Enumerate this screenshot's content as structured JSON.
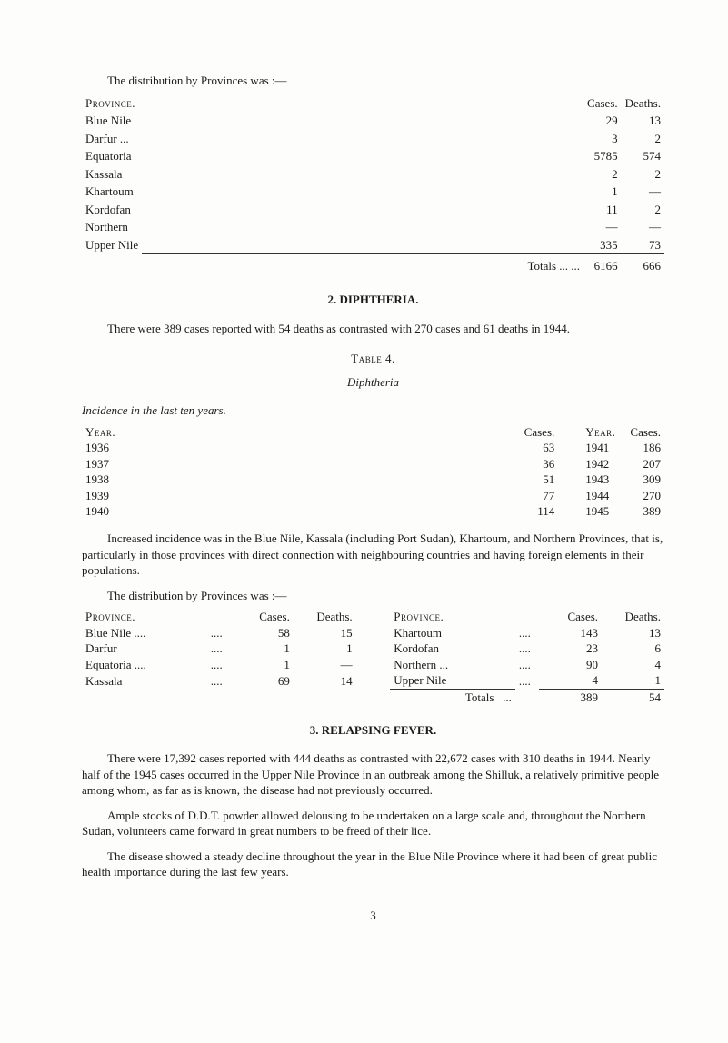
{
  "intro_line": "The distribution by Provinces was :—",
  "province_label": "Province.",
  "cases_label": "Cases.",
  "deaths_label": "Deaths.",
  "t1_rows": [
    {
      "name": "Blue Nile",
      "cases": "29",
      "deaths": "13"
    },
    {
      "name": "Darfur  ...",
      "cases": "3",
      "deaths": "2"
    },
    {
      "name": "Equatoria",
      "cases": "5785",
      "deaths": "574"
    },
    {
      "name": "Kassala",
      "cases": "2",
      "deaths": "2"
    },
    {
      "name": "Khartoum",
      "cases": "1",
      "deaths": "—"
    },
    {
      "name": "Kordofan",
      "cases": "11",
      "deaths": "2"
    },
    {
      "name": "Northern",
      "cases": "—",
      "deaths": "—"
    },
    {
      "name": "Upper Nile",
      "cases": "335",
      "deaths": "73"
    }
  ],
  "t1_totals_label": "Totals   ...   ...",
  "t1_totals_cases": "6166",
  "t1_totals_deaths": "666",
  "sec2_head": "2.   DIPHTHERIA.",
  "sec2_para": "There were 389 cases reported with 54 deaths as contrasted with 270 cases and 61 deaths in 1944.",
  "table4_head": "Table 4.",
  "table4_sub": "Diphtheria",
  "incidence_line": "Incidence in the last ten years.",
  "year_label": "Year.",
  "t4_left": [
    {
      "y": "1936",
      "c": "63"
    },
    {
      "y": "1937",
      "c": "36"
    },
    {
      "y": "1938",
      "c": "51"
    },
    {
      "y": "1939",
      "c": "77"
    },
    {
      "y": "1940",
      "c": "114"
    }
  ],
  "t4_right": [
    {
      "y": "1941",
      "c": "186"
    },
    {
      "y": "1942",
      "c": "207"
    },
    {
      "y": "1943",
      "c": "309"
    },
    {
      "y": "1944",
      "c": "270"
    },
    {
      "y": "1945",
      "c": "389"
    }
  ],
  "inc_para": "Increased incidence was in the Blue Nile, Kassala (including Port Sudan), Khartoum, and Northern Provinces, that is, particularly in those provinces with direct connection with neighbouring countries and having foreign elements in their populations.",
  "dist_line2": "The distribution by Provinces was :—",
  "t5_head_prov": "Province.",
  "t5_head_cases": "Cases.",
  "t5_head_deaths": "Deaths.",
  "t5_left": [
    {
      "p": "Blue Nile ....",
      "c": "58",
      "d": "15"
    },
    {
      "p": "Darfur",
      "c": "1",
      "d": "1"
    },
    {
      "p": "Equatoria ....",
      "c": "1",
      "d": "—"
    },
    {
      "p": "Kassala",
      "c": "69",
      "d": "14"
    }
  ],
  "t5_right": [
    {
      "p": "Khartoum",
      "c": "143",
      "d": "13"
    },
    {
      "p": "Kordofan",
      "c": "23",
      "d": "6"
    },
    {
      "p": "Northern ...",
      "c": "90",
      "d": "4"
    },
    {
      "p": "Upper Nile",
      "c": "4",
      "d": "1"
    }
  ],
  "t5_totals_label": "Totals",
  "t5_totals_cases": "389",
  "t5_totals_deaths": "54",
  "sec3_head": "3.   RELAPSING FEVER.",
  "sec3_p1": "There were 17,392 cases reported with 444 deaths as contrasted with 22,672 cases with 310 deaths in 1944.  Nearly half of the 1945 cases occurred in the Upper Nile Province in an outbreak among the Shilluk, a relatively primitive people among whom, as far as is known, the disease had not previously occurred.",
  "sec3_p2": "Ample stocks of D.D.T. powder allowed delousing to be undertaken on a large scale and, throughout the Northern Sudan, volunteers came forward in great numbers to be freed of their lice.",
  "sec3_p3": "The disease showed a steady decline throughout the year in the Blue Nile Province where it had been of great public health importance during the last few years.",
  "page_num": "3"
}
